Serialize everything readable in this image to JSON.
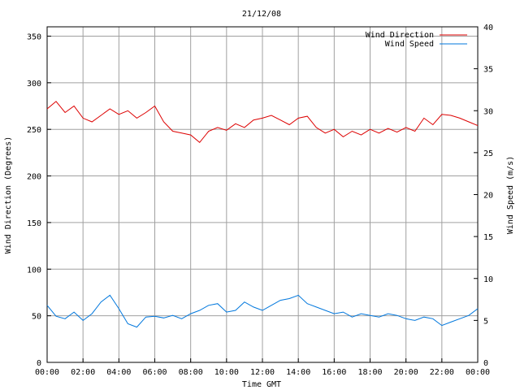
{
  "chart_data": {
    "type": "line",
    "title": "21/12/08",
    "xlabel": "Time GMT",
    "ylabel": "Wind Direction (Degrees)",
    "y2label": "Wind Speed (m/s)",
    "x_ticks": [
      "00:00",
      "02:00",
      "04:00",
      "06:00",
      "08:00",
      "10:00",
      "12:00",
      "14:00",
      "16:00",
      "18:00",
      "20:00",
      "22:00",
      "00:00"
    ],
    "y_ticks": [
      "0",
      "50",
      "100",
      "150",
      "200",
      "250",
      "300",
      "350"
    ],
    "y2_ticks": [
      "0",
      "5",
      "10",
      "15",
      "20",
      "25",
      "30",
      "35",
      "40"
    ],
    "ylim": [
      0,
      360
    ],
    "y2lim": [
      0,
      40
    ],
    "xlim_hours": [
      0,
      24
    ],
    "grid": true,
    "legend_position": "top-right",
    "series": [
      {
        "name": "Wind Direction",
        "axis": "left",
        "color": "#dd0000",
        "x_hours": [
          0,
          0.5,
          1,
          1.5,
          2,
          2.5,
          3,
          3.5,
          4,
          4.5,
          5,
          5.5,
          6,
          6.5,
          7,
          7.5,
          8,
          8.5,
          9,
          9.5,
          10,
          10.5,
          11,
          11.5,
          12,
          12.5,
          13,
          13.5,
          14,
          14.5,
          15,
          15.5,
          16,
          16.5,
          17,
          17.5,
          18,
          18.5,
          19,
          19.5,
          20,
          20.5,
          21,
          21.5,
          22,
          22.5,
          23,
          23.5,
          24
        ],
        "values": [
          272,
          280,
          268,
          275,
          262,
          258,
          265,
          272,
          266,
          270,
          262,
          268,
          275,
          258,
          248,
          246,
          244,
          236,
          248,
          252,
          249,
          256,
          252,
          260,
          262,
          265,
          260,
          255,
          262,
          264,
          252,
          246,
          250,
          242,
          248,
          244,
          250,
          246,
          251,
          247,
          252,
          248,
          262,
          255,
          266,
          265,
          262,
          258,
          254
        ]
      },
      {
        "name": "Wind Speed",
        "axis": "right",
        "color": "#0077dd",
        "x_hours": [
          0,
          0.5,
          1,
          1.5,
          2,
          2.5,
          3,
          3.5,
          4,
          4.5,
          5,
          5.5,
          6,
          6.5,
          7,
          7.5,
          8,
          8.5,
          9,
          9.5,
          10,
          10.5,
          11,
          11.5,
          12,
          12.5,
          13,
          13.5,
          14,
          14.5,
          15,
          15.5,
          16,
          16.5,
          17,
          17.5,
          18,
          18.5,
          19,
          19.5,
          20,
          20.5,
          21,
          21.5,
          22,
          22.5,
          23,
          23.5,
          24
        ],
        "values": [
          6.8,
          5.5,
          5.2,
          6.0,
          5.0,
          5.8,
          7.2,
          8.0,
          6.4,
          4.6,
          4.2,
          5.4,
          5.5,
          5.3,
          5.6,
          5.2,
          5.8,
          6.2,
          6.8,
          7.0,
          6.0,
          6.2,
          7.2,
          6.6,
          6.2,
          6.8,
          7.4,
          7.6,
          8.0,
          7.0,
          6.6,
          6.2,
          5.8,
          6.0,
          5.4,
          5.8,
          5.6,
          5.4,
          5.8,
          5.6,
          5.2,
          5.0,
          5.4,
          5.2,
          4.4,
          4.8,
          5.2,
          5.6,
          6.4
        ]
      }
    ]
  }
}
